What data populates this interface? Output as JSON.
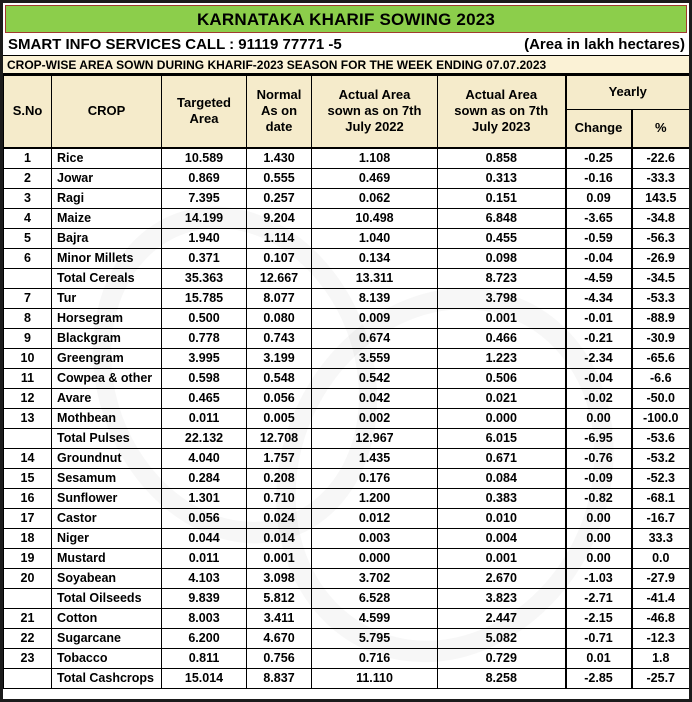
{
  "title": "KARNATAKA KHARIF SOWING 2023",
  "info_bar": {
    "left": "SMART INFO SERVICES CALL : 91119 77771 -5",
    "right": "(Area in lakh hectares)"
  },
  "subtitle": "CROP-WISE AREA SOWN DURING KHARIF-2023 SEASON FOR THE WEEK ENDING 07.07.2023",
  "colors": {
    "banner_green": "#8CCE4B",
    "banner_border_red": "#A03B2E",
    "header_cream": "#F5EBCB",
    "subtitle_cream": "#FBF2D6",
    "total_row_blue": "#95B3D7",
    "grid_black": "#000000"
  },
  "table": {
    "headers": {
      "sno": "S.No",
      "crop": "CROP",
      "targeted": "Targeted\nArea",
      "normal": "Normal\nAs on\ndate",
      "actual2022": "Actual Area\nsown as on 7th\nJuly 2022",
      "actual2023": "Actual Area\nsown as on 7th\nJuly 2023",
      "yearly": "Yearly",
      "change": "Change",
      "pct": "%"
    },
    "rows": [
      {
        "type": "normal",
        "sno": "1",
        "crop": "Rice",
        "targeted": "10.589",
        "normal": "1.430",
        "actual2022": "1.108",
        "actual2023": "0.858",
        "change": "-0.25",
        "pct": "-22.6"
      },
      {
        "type": "normal",
        "sno": "2",
        "crop": "Jowar",
        "targeted": "0.869",
        "normal": "0.555",
        "actual2022": "0.469",
        "actual2023": "0.313",
        "change": "-0.16",
        "pct": "-33.3"
      },
      {
        "type": "normal",
        "sno": "3",
        "crop": "Ragi",
        "targeted": "7.395",
        "normal": "0.257",
        "actual2022": "0.062",
        "actual2023": "0.151",
        "change": "0.09",
        "pct": "143.5"
      },
      {
        "type": "normal",
        "sno": "4",
        "crop": "Maize",
        "targeted": "14.199",
        "normal": "9.204",
        "actual2022": "10.498",
        "actual2023": "6.848",
        "change": "-3.65",
        "pct": "-34.8"
      },
      {
        "type": "normal",
        "sno": "5",
        "crop": "Bajra",
        "targeted": "1.940",
        "normal": "1.114",
        "actual2022": "1.040",
        "actual2023": "0.455",
        "change": "-0.59",
        "pct": "-56.3"
      },
      {
        "type": "normal",
        "sno": "6",
        "crop": "Minor Millets",
        "targeted": "0.371",
        "normal": "0.107",
        "actual2022": "0.134",
        "actual2023": "0.098",
        "change": "-0.04",
        "pct": "-26.9"
      },
      {
        "type": "total",
        "sno": "",
        "crop": "Total Cereals",
        "targeted": "35.363",
        "normal": "12.667",
        "actual2022": "13.311",
        "actual2023": "8.723",
        "change": "-4.59",
        "pct": "-34.5"
      },
      {
        "type": "normal",
        "sno": "7",
        "crop": "Tur",
        "targeted": "15.785",
        "normal": "8.077",
        "actual2022": "8.139",
        "actual2023": "3.798",
        "change": "-4.34",
        "pct": "-53.3"
      },
      {
        "type": "normal",
        "sno": "8",
        "crop": "Horsegram",
        "targeted": "0.500",
        "normal": "0.080",
        "actual2022": "0.009",
        "actual2023": "0.001",
        "change": "-0.01",
        "pct": "-88.9"
      },
      {
        "type": "normal",
        "sno": "9",
        "crop": "Blackgram",
        "targeted": "0.778",
        "normal": "0.743",
        "actual2022": "0.674",
        "actual2023": "0.466",
        "change": "-0.21",
        "pct": "-30.9"
      },
      {
        "type": "normal",
        "sno": "10",
        "crop": "Greengram",
        "targeted": "3.995",
        "normal": "3.199",
        "actual2022": "3.559",
        "actual2023": "1.223",
        "change": "-2.34",
        "pct": "-65.6"
      },
      {
        "type": "normal",
        "sno": "11",
        "crop": "Cowpea & other",
        "targeted": "0.598",
        "normal": "0.548",
        "actual2022": "0.542",
        "actual2023": "0.506",
        "change": "-0.04",
        "pct": "-6.6"
      },
      {
        "type": "normal",
        "sno": "12",
        "crop": "Avare",
        "targeted": "0.465",
        "normal": "0.056",
        "actual2022": "0.042",
        "actual2023": "0.021",
        "change": "-0.02",
        "pct": "-50.0"
      },
      {
        "type": "normal",
        "sno": "13",
        "crop": "Mothbean",
        "targeted": "0.011",
        "normal": "0.005",
        "actual2022": "0.002",
        "actual2023": "0.000",
        "change": "0.00",
        "pct": "-100.0"
      },
      {
        "type": "total",
        "sno": "",
        "crop": "Total Pulses",
        "targeted": "22.132",
        "normal": "12.708",
        "actual2022": "12.967",
        "actual2023": "6.015",
        "change": "-6.95",
        "pct": "-53.6"
      },
      {
        "type": "normal",
        "sno": "14",
        "crop": "Groundnut",
        "targeted": "4.040",
        "normal": "1.757",
        "actual2022": "1.435",
        "actual2023": "0.671",
        "change": "-0.76",
        "pct": "-53.2"
      },
      {
        "type": "normal",
        "sno": "15",
        "crop": "Sesamum",
        "targeted": "0.284",
        "normal": "0.208",
        "actual2022": "0.176",
        "actual2023": "0.084",
        "change": "-0.09",
        "pct": "-52.3"
      },
      {
        "type": "normal",
        "sno": "16",
        "crop": "Sunflower",
        "targeted": "1.301",
        "normal": "0.710",
        "actual2022": "1.200",
        "actual2023": "0.383",
        "change": "-0.82",
        "pct": "-68.1"
      },
      {
        "type": "normal",
        "sno": "17",
        "crop": "Castor",
        "targeted": "0.056",
        "normal": "0.024",
        "actual2022": "0.012",
        "actual2023": "0.010",
        "change": "0.00",
        "pct": "-16.7"
      },
      {
        "type": "normal",
        "sno": "18",
        "crop": "Niger",
        "targeted": "0.044",
        "normal": "0.014",
        "actual2022": "0.003",
        "actual2023": "0.004",
        "change": "0.00",
        "pct": "33.3"
      },
      {
        "type": "normal",
        "sno": "19",
        "crop": "Mustard",
        "targeted": "0.011",
        "normal": "0.001",
        "actual2022": "0.000",
        "actual2023": "0.001",
        "change": "0.00",
        "pct": "0.0"
      },
      {
        "type": "emphasis",
        "sno": "20",
        "crop": "Soyabean",
        "targeted": "4.103",
        "normal": "3.098",
        "actual2022": "3.702",
        "actual2023": "2.670",
        "change": "-1.03",
        "pct": "-27.9"
      },
      {
        "type": "total",
        "sno": "",
        "crop": "Total Oilseeds",
        "targeted": "9.839",
        "normal": "5.812",
        "actual2022": "6.528",
        "actual2023": "3.823",
        "change": "-2.71",
        "pct": "-41.4"
      },
      {
        "type": "emphasis",
        "sno": "21",
        "crop": "Cotton",
        "targeted": "8.003",
        "normal": "3.411",
        "actual2022": "4.599",
        "actual2023": "2.447",
        "change": "-2.15",
        "pct": "-46.8"
      },
      {
        "type": "normal",
        "sno": "22",
        "crop": "Sugarcane",
        "targeted": "6.200",
        "normal": "4.670",
        "actual2022": "5.795",
        "actual2023": "5.082",
        "change": "-0.71",
        "pct": "-12.3"
      },
      {
        "type": "normal",
        "sno": "23",
        "crop": "Tobacco",
        "targeted": "0.811",
        "normal": "0.756",
        "actual2022": "0.716",
        "actual2023": "0.729",
        "change": "0.01",
        "pct": "1.8"
      },
      {
        "type": "total",
        "sno": "",
        "crop": "Total Cashcrops",
        "targeted": "15.014",
        "normal": "8.837",
        "actual2022": "11.110",
        "actual2023": "8.258",
        "change": "-2.85",
        "pct": "-25.7"
      }
    ]
  }
}
